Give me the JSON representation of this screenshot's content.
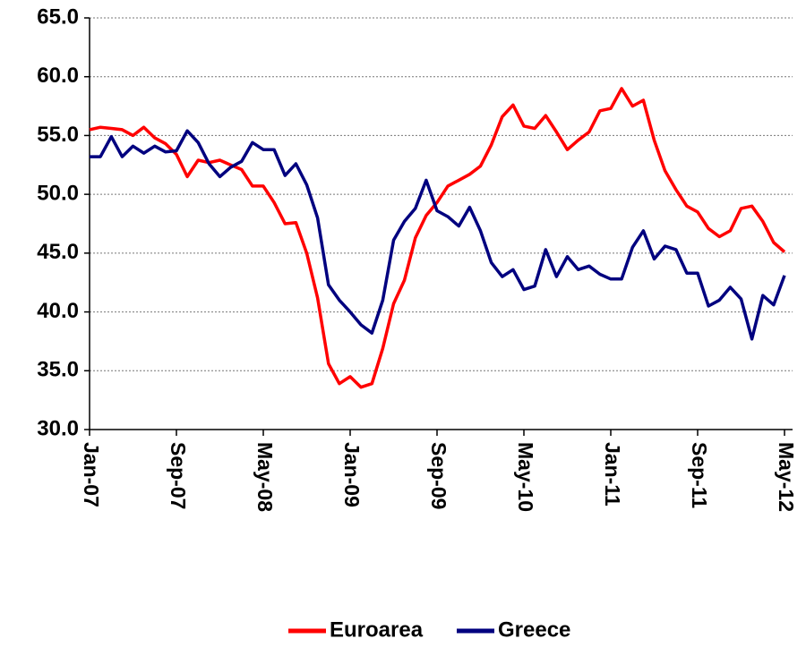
{
  "chart_data": {
    "type": "line",
    "categories": [
      "Jan-07",
      null,
      null,
      null,
      null,
      null,
      null,
      null,
      "Sep-07",
      null,
      null,
      null,
      null,
      null,
      null,
      null,
      "May-08",
      null,
      null,
      null,
      null,
      null,
      null,
      null,
      "Jan-09",
      null,
      null,
      null,
      null,
      null,
      null,
      null,
      "Sep-09",
      null,
      null,
      null,
      null,
      null,
      null,
      null,
      "May-10",
      null,
      null,
      null,
      null,
      null,
      null,
      null,
      "Jan-11",
      null,
      null,
      null,
      null,
      null,
      null,
      null,
      "Sep-11",
      null,
      null,
      null,
      null,
      null,
      null,
      null,
      "May-12"
    ],
    "series": [
      {
        "name": "Euroarea",
        "color": "#ff0000",
        "values": [
          55.5,
          55.7,
          55.6,
          55.5,
          55.0,
          55.7,
          54.8,
          54.3,
          53.4,
          51.5,
          52.9,
          52.7,
          52.9,
          52.5,
          52.1,
          50.7,
          50.7,
          49.3,
          47.5,
          47.6,
          45.0,
          41.2,
          35.6,
          33.9,
          34.5,
          33.6,
          33.9,
          36.9,
          40.7,
          42.7,
          46.3,
          48.2,
          49.3,
          50.7,
          51.2,
          51.7,
          52.4,
          54.2,
          56.6,
          57.6,
          55.8,
          55.6,
          56.7,
          55.3,
          53.8,
          54.6,
          55.3,
          57.1,
          57.3,
          59.0,
          57.5,
          58.0,
          54.6,
          52.0,
          50.4,
          49.0,
          48.5,
          47.1,
          46.4,
          46.9,
          48.8,
          49.0,
          47.7,
          45.9,
          45.1
        ]
      },
      {
        "name": "Greece",
        "color": "#00007f",
        "values": [
          53.2,
          53.2,
          54.9,
          53.2,
          54.1,
          53.5,
          54.1,
          53.6,
          53.7,
          55.4,
          54.4,
          52.6,
          51.5,
          52.3,
          52.8,
          54.4,
          53.8,
          53.8,
          51.6,
          52.6,
          50.8,
          48.0,
          42.3,
          41.0,
          40.0,
          38.9,
          38.2,
          41.0,
          46.1,
          47.7,
          48.8,
          51.2,
          48.6,
          48.1,
          47.3,
          48.9,
          46.9,
          44.2,
          43.0,
          43.6,
          41.9,
          42.2,
          45.3,
          43.0,
          44.7,
          43.6,
          43.9,
          43.2,
          42.8,
          42.8,
          45.5,
          46.9,
          44.5,
          45.6,
          45.3,
          43.3,
          43.3,
          40.5,
          41.0,
          42.1,
          41.1,
          37.7,
          41.4,
          40.6,
          43.1
        ]
      }
    ],
    "ylim": [
      30,
      65
    ],
    "yticks": [
      {
        "value": 30,
        "label": "30.0"
      },
      {
        "value": 35,
        "label": "35.0"
      },
      {
        "value": 40,
        "label": "40.0"
      },
      {
        "value": 45,
        "label": "45.0"
      },
      {
        "value": 50,
        "label": "50.0"
      },
      {
        "value": 55,
        "label": "55.0"
      },
      {
        "value": 60,
        "label": "60.0"
      },
      {
        "value": 65,
        "label": "65.0"
      }
    ],
    "grid": true,
    "legend": "bottom"
  }
}
